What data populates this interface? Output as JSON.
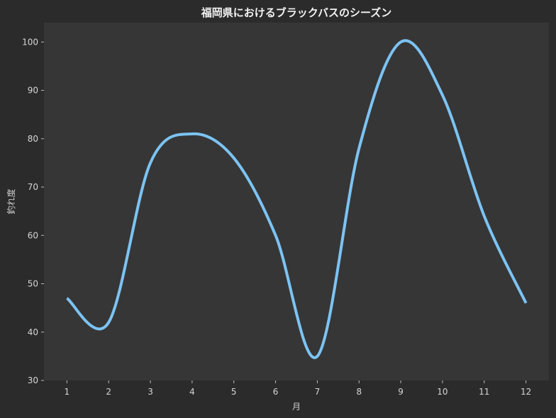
{
  "chart_data": {
    "type": "line",
    "title": "福岡県におけるブラックバスのシーズン",
    "xlabel": "月",
    "ylabel": "釣れ度",
    "x": [
      1,
      2,
      3,
      4,
      5,
      6,
      7,
      8,
      9,
      10,
      11,
      12
    ],
    "series": [
      {
        "values": [
          47,
          42,
          75,
          81,
          76,
          60,
          35,
          78,
          100,
          89,
          64,
          46
        ]
      }
    ],
    "xticks": [
      1,
      2,
      3,
      4,
      5,
      6,
      7,
      8,
      9,
      10,
      11,
      12
    ],
    "yticks": [
      30,
      40,
      50,
      60,
      70,
      80,
      90,
      100
    ],
    "xlim": [
      0.45,
      12.55
    ],
    "ylim": [
      30,
      104
    ],
    "grid": false,
    "line_color": "#7cc3f3",
    "plot_background": "#363636",
    "figure_background": "#2b2b2b"
  }
}
